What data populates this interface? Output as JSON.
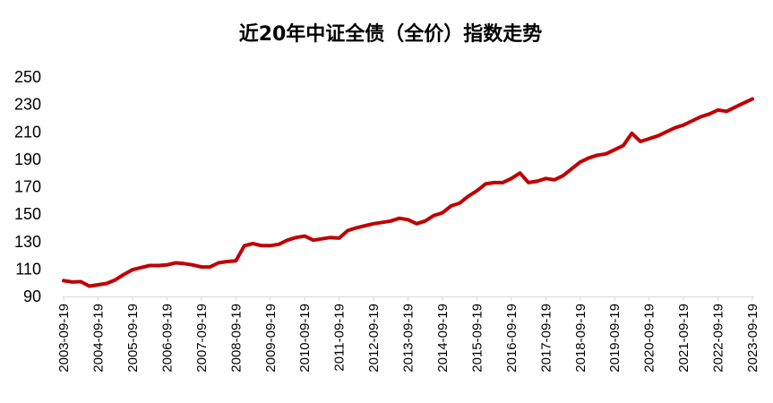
{
  "chart_data": {
    "type": "line",
    "title": "近20年中证全债（全价）指数走势",
    "xlabel": "",
    "ylabel": "",
    "ylim": [
      90,
      250
    ],
    "yticks": [
      90,
      110,
      130,
      150,
      170,
      190,
      210,
      230,
      250
    ],
    "xticks": [
      "2003-09-19",
      "2004-09-19",
      "2005-09-19",
      "2006-09-19",
      "2007-09-19",
      "2008-09-19",
      "2009-09-19",
      "2010-09-19",
      "2011-09-19",
      "2012-09-19",
      "2013-09-19",
      "2014-09-19",
      "2015-09-19",
      "2016-09-19",
      "2017-09-19",
      "2018-09-19",
      "2019-09-19",
      "2020-09-19",
      "2021-09-19",
      "2022-09-19",
      "2023-09-19"
    ],
    "grid": false,
    "legend": "none",
    "series_color": "#c00000",
    "series": [
      {
        "x": [
          "2003-09-19",
          "2003-12-19",
          "2004-03-19",
          "2004-06-19",
          "2004-09-19",
          "2004-12-19",
          "2005-03-19",
          "2005-06-19",
          "2005-09-19",
          "2005-12-19",
          "2006-03-19",
          "2006-06-19",
          "2006-09-19",
          "2006-12-19",
          "2007-03-19",
          "2007-06-19",
          "2007-09-19",
          "2007-12-19",
          "2008-03-19",
          "2008-06-19",
          "2008-09-19",
          "2008-12-19",
          "2009-03-19",
          "2009-06-19",
          "2009-09-19",
          "2009-12-19",
          "2010-03-19",
          "2010-06-19",
          "2010-09-19",
          "2010-12-19",
          "2011-03-19",
          "2011-06-19",
          "2011-09-19",
          "2011-12-19",
          "2012-03-19",
          "2012-06-19",
          "2012-09-19",
          "2012-12-19",
          "2013-03-19",
          "2013-06-19",
          "2013-09-19",
          "2013-12-19",
          "2014-03-19",
          "2014-06-19",
          "2014-09-19",
          "2014-12-19",
          "2015-03-19",
          "2015-06-19",
          "2015-09-19",
          "2015-12-19",
          "2016-03-19",
          "2016-06-19",
          "2016-09-19",
          "2016-12-19",
          "2017-03-19",
          "2017-06-19",
          "2017-09-19",
          "2017-12-19",
          "2018-03-19",
          "2018-06-19",
          "2018-09-19",
          "2018-12-19",
          "2019-03-19",
          "2019-06-19",
          "2019-09-19",
          "2019-12-19",
          "2020-03-19",
          "2020-06-19",
          "2020-09-19",
          "2020-12-19",
          "2021-03-19",
          "2021-06-19",
          "2021-09-19",
          "2021-12-19",
          "2022-03-19",
          "2022-06-19",
          "2022-09-19",
          "2022-12-19",
          "2023-03-19",
          "2023-06-19",
          "2023-09-19"
        ],
        "values": [
          101.5,
          100.5,
          100.8,
          97.5,
          98.5,
          99.5,
          102,
          106,
          109.5,
          111,
          112.5,
          112.5,
          113,
          114.5,
          114,
          113,
          111.5,
          111.5,
          114.5,
          115.5,
          116,
          127,
          128.5,
          127,
          127,
          128,
          131,
          133,
          134,
          131,
          132,
          133,
          132.5,
          138,
          140,
          141.5,
          143,
          144,
          145,
          147,
          146,
          143,
          145,
          149,
          151,
          156,
          158,
          163,
          167,
          172,
          173,
          173,
          176,
          180,
          173,
          174,
          176,
          175,
          178,
          183,
          188,
          191,
          193,
          194,
          197,
          200,
          209,
          203,
          205,
          207,
          210,
          213,
          215,
          218,
          221,
          223,
          226,
          225,
          228,
          231,
          234
        ]
      }
    ]
  }
}
